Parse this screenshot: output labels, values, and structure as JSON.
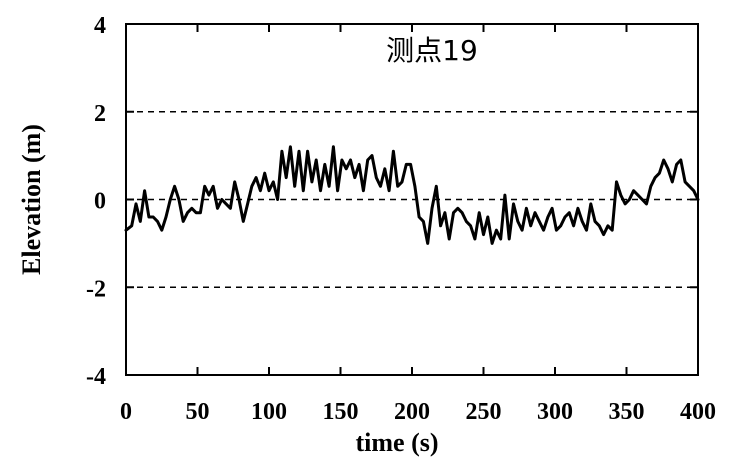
{
  "chart_data": {
    "type": "line",
    "title": "测点19",
    "xlabel": "time (s)",
    "ylabel": "Elevation (m)",
    "xlim": [
      0,
      400
    ],
    "ylim": [
      -4,
      4
    ],
    "xticks": [
      0,
      50,
      100,
      150,
      200,
      250,
      300,
      350,
      400
    ],
    "yticks": [
      -4,
      -2,
      0,
      2,
      4
    ],
    "xtick_labels": [
      "0",
      "50",
      "100",
      "150",
      "200",
      "250",
      "300",
      "350",
      "400"
    ],
    "ytick_labels": [
      "-4",
      "-2",
      "0",
      "2",
      "4"
    ],
    "reference_lines": [
      -2,
      0,
      2
    ],
    "line_color": "#000000",
    "series": [
      {
        "x": [
          0,
          4,
          7,
          10,
          13,
          16,
          19,
          22,
          25,
          28,
          31,
          34,
          37,
          40,
          43,
          46,
          49,
          52,
          55,
          58,
          61,
          64,
          67,
          70,
          73,
          76,
          79,
          82,
          85,
          88,
          91,
          94,
          97,
          100,
          103,
          106,
          109,
          112,
          115,
          118,
          121,
          124,
          127,
          130,
          133,
          136,
          139,
          142,
          145,
          148,
          151,
          154,
          157,
          160,
          163,
          166,
          169,
          172,
          175,
          178,
          181,
          184,
          187,
          190,
          193,
          196,
          199,
          202,
          205,
          208,
          211,
          214,
          217,
          220,
          223,
          226,
          229,
          232,
          235,
          238,
          241,
          244,
          247,
          250,
          253,
          256,
          259,
          262,
          265,
          268,
          271,
          274,
          277,
          280,
          283,
          286,
          289,
          292,
          295,
          298,
          301,
          304,
          307,
          310,
          313,
          316,
          319,
          322,
          325,
          328,
          331,
          334,
          337,
          340,
          343,
          346,
          349,
          352,
          355,
          358,
          361,
          364,
          367,
          370,
          373,
          376,
          379,
          382,
          385,
          388,
          391,
          394,
          397,
          400
        ],
        "y": [
          -0.7,
          -0.6,
          -0.1,
          -0.5,
          0.2,
          -0.4,
          -0.4,
          -0.5,
          -0.7,
          -0.4,
          0.0,
          0.3,
          0.0,
          -0.5,
          -0.3,
          -0.2,
          -0.3,
          -0.3,
          0.3,
          0.1,
          0.3,
          -0.2,
          0.0,
          -0.1,
          -0.2,
          0.4,
          0.0,
          -0.5,
          -0.1,
          0.3,
          0.5,
          0.2,
          0.6,
          0.2,
          0.4,
          0.0,
          1.1,
          0.5,
          1.2,
          0.3,
          1.1,
          0.2,
          1.1,
          0.4,
          0.9,
          0.2,
          0.8,
          0.3,
          1.2,
          0.2,
          0.9,
          0.7,
          0.9,
          0.5,
          0.8,
          0.2,
          0.9,
          1.0,
          0.5,
          0.3,
          0.7,
          0.2,
          1.1,
          0.3,
          0.4,
          0.8,
          0.8,
          0.3,
          -0.4,
          -0.5,
          -1.0,
          -0.2,
          0.3,
          -0.6,
          -0.3,
          -0.9,
          -0.3,
          -0.2,
          -0.3,
          -0.5,
          -0.6,
          -0.9,
          -0.3,
          -0.8,
          -0.4,
          -1.0,
          -0.7,
          -0.9,
          0.1,
          -0.9,
          -0.1,
          -0.5,
          -0.7,
          -0.2,
          -0.6,
          -0.3,
          -0.5,
          -0.7,
          -0.4,
          -0.2,
          -0.7,
          -0.6,
          -0.4,
          -0.3,
          -0.6,
          -0.2,
          -0.5,
          -0.7,
          -0.1,
          -0.5,
          -0.6,
          -0.8,
          -0.6,
          -0.7,
          0.4,
          0.1,
          -0.1,
          0.0,
          0.2,
          0.1,
          0.0,
          -0.1,
          0.3,
          0.5,
          0.6,
          0.9,
          0.7,
          0.4,
          0.8,
          0.9,
          0.4,
          0.3,
          0.2,
          0.0
        ]
      }
    ]
  }
}
